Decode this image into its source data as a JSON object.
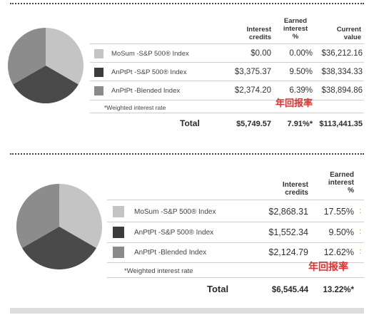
{
  "table1": {
    "headers": {
      "interest_credits": [
        "Interest",
        "credits"
      ],
      "earned_interest": [
        "Earned",
        "interest",
        "%"
      ],
      "current_value": [
        "Current",
        "value"
      ]
    },
    "rows": [
      {
        "label": "MoSum -S&P 500® Index",
        "credits": "$0.00",
        "earned": "0.00%",
        "value": "$36,212.16",
        "color": "#c4c4c4"
      },
      {
        "label": "AnPtPt -S&P 500® Index",
        "credits": "$3,375.37",
        "earned": "9.50%",
        "value": "$38,334.33",
        "color": "#3c3c3c"
      },
      {
        "label": "AnPtPt -Blended Index",
        "credits": "$2,374.20",
        "earned": "6.39%",
        "value": "$38,894.86",
        "color": "#8a8a8a"
      }
    ],
    "note": "*Weighted interest rate",
    "total": {
      "label": "Total",
      "credits": "$5,749.57",
      "earned": "7.91%*",
      "value": "$113,441.35"
    },
    "annotation": "年回报率"
  },
  "table2": {
    "headers": {
      "interest_credits": [
        "Interest",
        "credits"
      ],
      "earned_interest": [
        "Earned",
        "interest",
        "%"
      ]
    },
    "rows": [
      {
        "label": "MoSum -S&P 500® Index",
        "credits": "$2,868.31",
        "earned": "17.55%",
        "color": "#c4c4c4"
      },
      {
        "label": "AnPtPt -S&P 500® Index",
        "credits": "$1,552.34",
        "earned": "9.50%",
        "color": "#3c3c3c"
      },
      {
        "label": "AnPtPt -Blended Index",
        "credits": "$2,124.79",
        "earned": "12.62%",
        "color": "#8a8a8a"
      }
    ],
    "note": "*Weighted interest rate",
    "total": {
      "label": "Total",
      "credits": "$6,545.44",
      "earned": "13.22%*"
    },
    "annotation": "年回报率"
  }
}
